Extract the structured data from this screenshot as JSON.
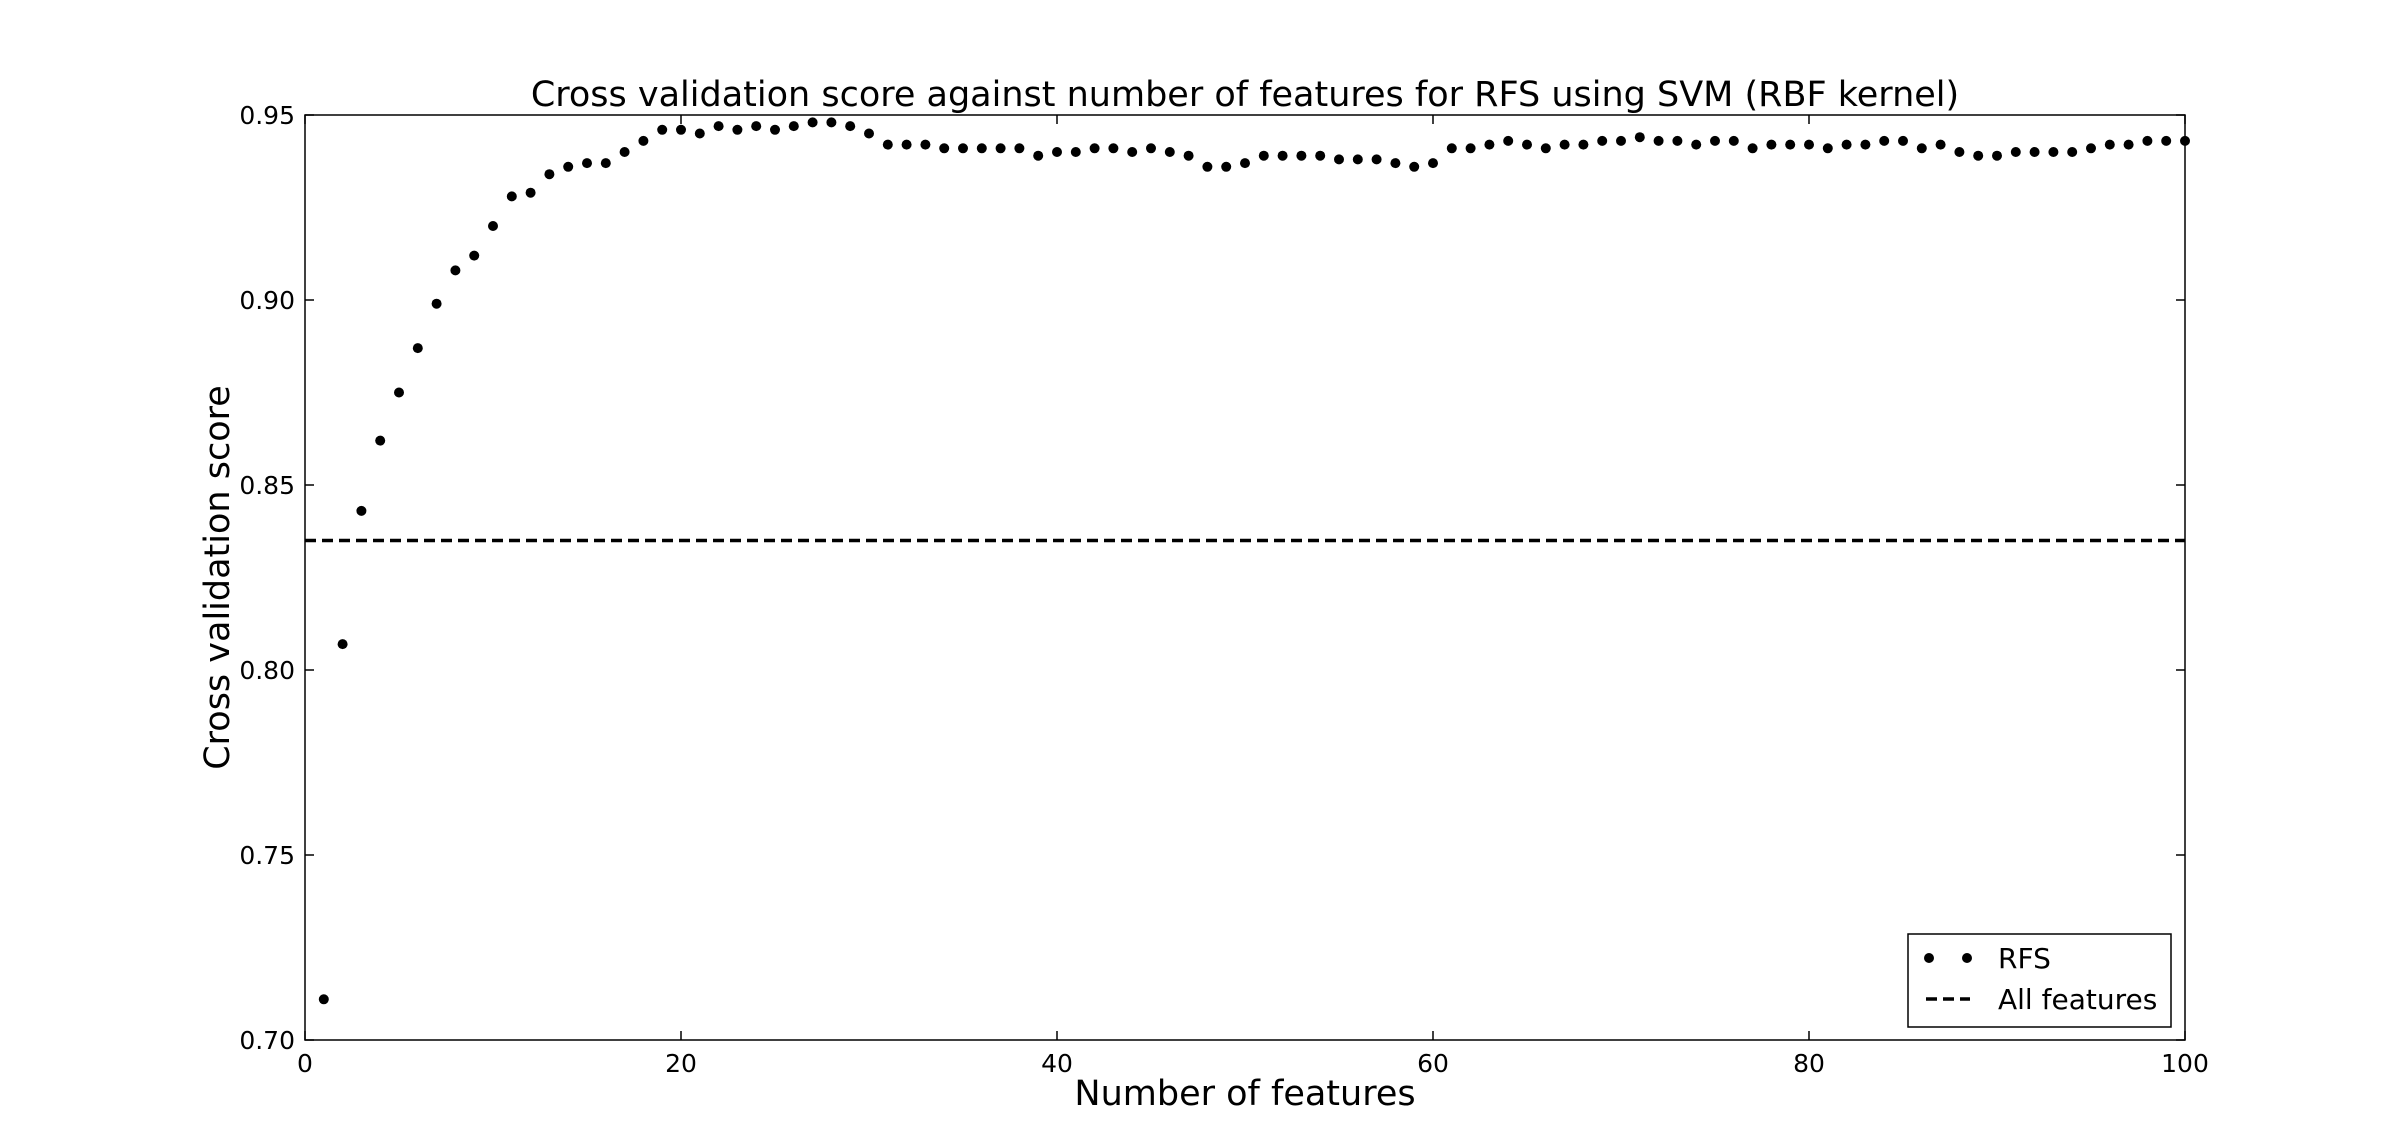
{
  "chart_data": {
    "type": "scatter",
    "title": "Cross validation score against number of features for RFS using SVM (RBF kernel)",
    "xlabel": "Number of features",
    "ylabel": "Cross validation score",
    "xlim": [
      0,
      100
    ],
    "ylim": [
      0.7,
      0.95
    ],
    "x_ticks": [
      0,
      20,
      40,
      60,
      80,
      100
    ],
    "x_tick_labels": [
      "0",
      "20",
      "40",
      "60",
      "80",
      "100"
    ],
    "y_ticks": [
      0.7,
      0.75,
      0.8,
      0.85,
      0.9,
      0.95
    ],
    "y_tick_labels": [
      "0.70",
      "0.75",
      "0.80",
      "0.85",
      "0.90",
      "0.95"
    ],
    "grid": false,
    "legend_position": "bottom-right",
    "series": [
      {
        "name": "RFS",
        "style": "dots",
        "color": "#000000",
        "x": [
          1,
          2,
          3,
          4,
          5,
          6,
          7,
          8,
          9,
          10,
          11,
          12,
          13,
          14,
          15,
          16,
          17,
          18,
          19,
          20,
          21,
          22,
          23,
          24,
          25,
          26,
          27,
          28,
          29,
          30,
          31,
          32,
          33,
          34,
          35,
          36,
          37,
          38,
          39,
          40,
          41,
          42,
          43,
          44,
          45,
          46,
          47,
          48,
          49,
          50,
          51,
          52,
          53,
          54,
          55,
          56,
          57,
          58,
          59,
          60,
          61,
          62,
          63,
          64,
          65,
          66,
          67,
          68,
          69,
          70,
          71,
          72,
          73,
          74,
          75,
          76,
          77,
          78,
          79,
          80,
          81,
          82,
          83,
          84,
          85,
          86,
          87,
          88,
          89,
          90,
          91,
          92,
          93,
          94,
          95,
          96,
          97,
          98,
          99,
          100
        ],
        "y": [
          0.711,
          0.807,
          0.843,
          0.862,
          0.875,
          0.887,
          0.899,
          0.908,
          0.912,
          0.92,
          0.928,
          0.929,
          0.934,
          0.936,
          0.937,
          0.937,
          0.94,
          0.943,
          0.946,
          0.946,
          0.945,
          0.947,
          0.946,
          0.947,
          0.946,
          0.947,
          0.948,
          0.948,
          0.947,
          0.945,
          0.942,
          0.942,
          0.942,
          0.941,
          0.941,
          0.941,
          0.941,
          0.941,
          0.939,
          0.94,
          0.94,
          0.941,
          0.941,
          0.94,
          0.941,
          0.94,
          0.939,
          0.936,
          0.936,
          0.937,
          0.939,
          0.939,
          0.939,
          0.939,
          0.938,
          0.938,
          0.938,
          0.937,
          0.936,
          0.937,
          0.941,
          0.941,
          0.942,
          0.943,
          0.942,
          0.941,
          0.942,
          0.942,
          0.943,
          0.943,
          0.944,
          0.943,
          0.943,
          0.942,
          0.943,
          0.943,
          0.941,
          0.942,
          0.942,
          0.942,
          0.941,
          0.942,
          0.942,
          0.943,
          0.943,
          0.941,
          0.942,
          0.94,
          0.939,
          0.939,
          0.94,
          0.94,
          0.94,
          0.94,
          0.941,
          0.942,
          0.942,
          0.943,
          0.943,
          0.943
        ]
      },
      {
        "name": "All features",
        "style": "dashed",
        "color": "#000000",
        "y": 0.835
      }
    ]
  }
}
